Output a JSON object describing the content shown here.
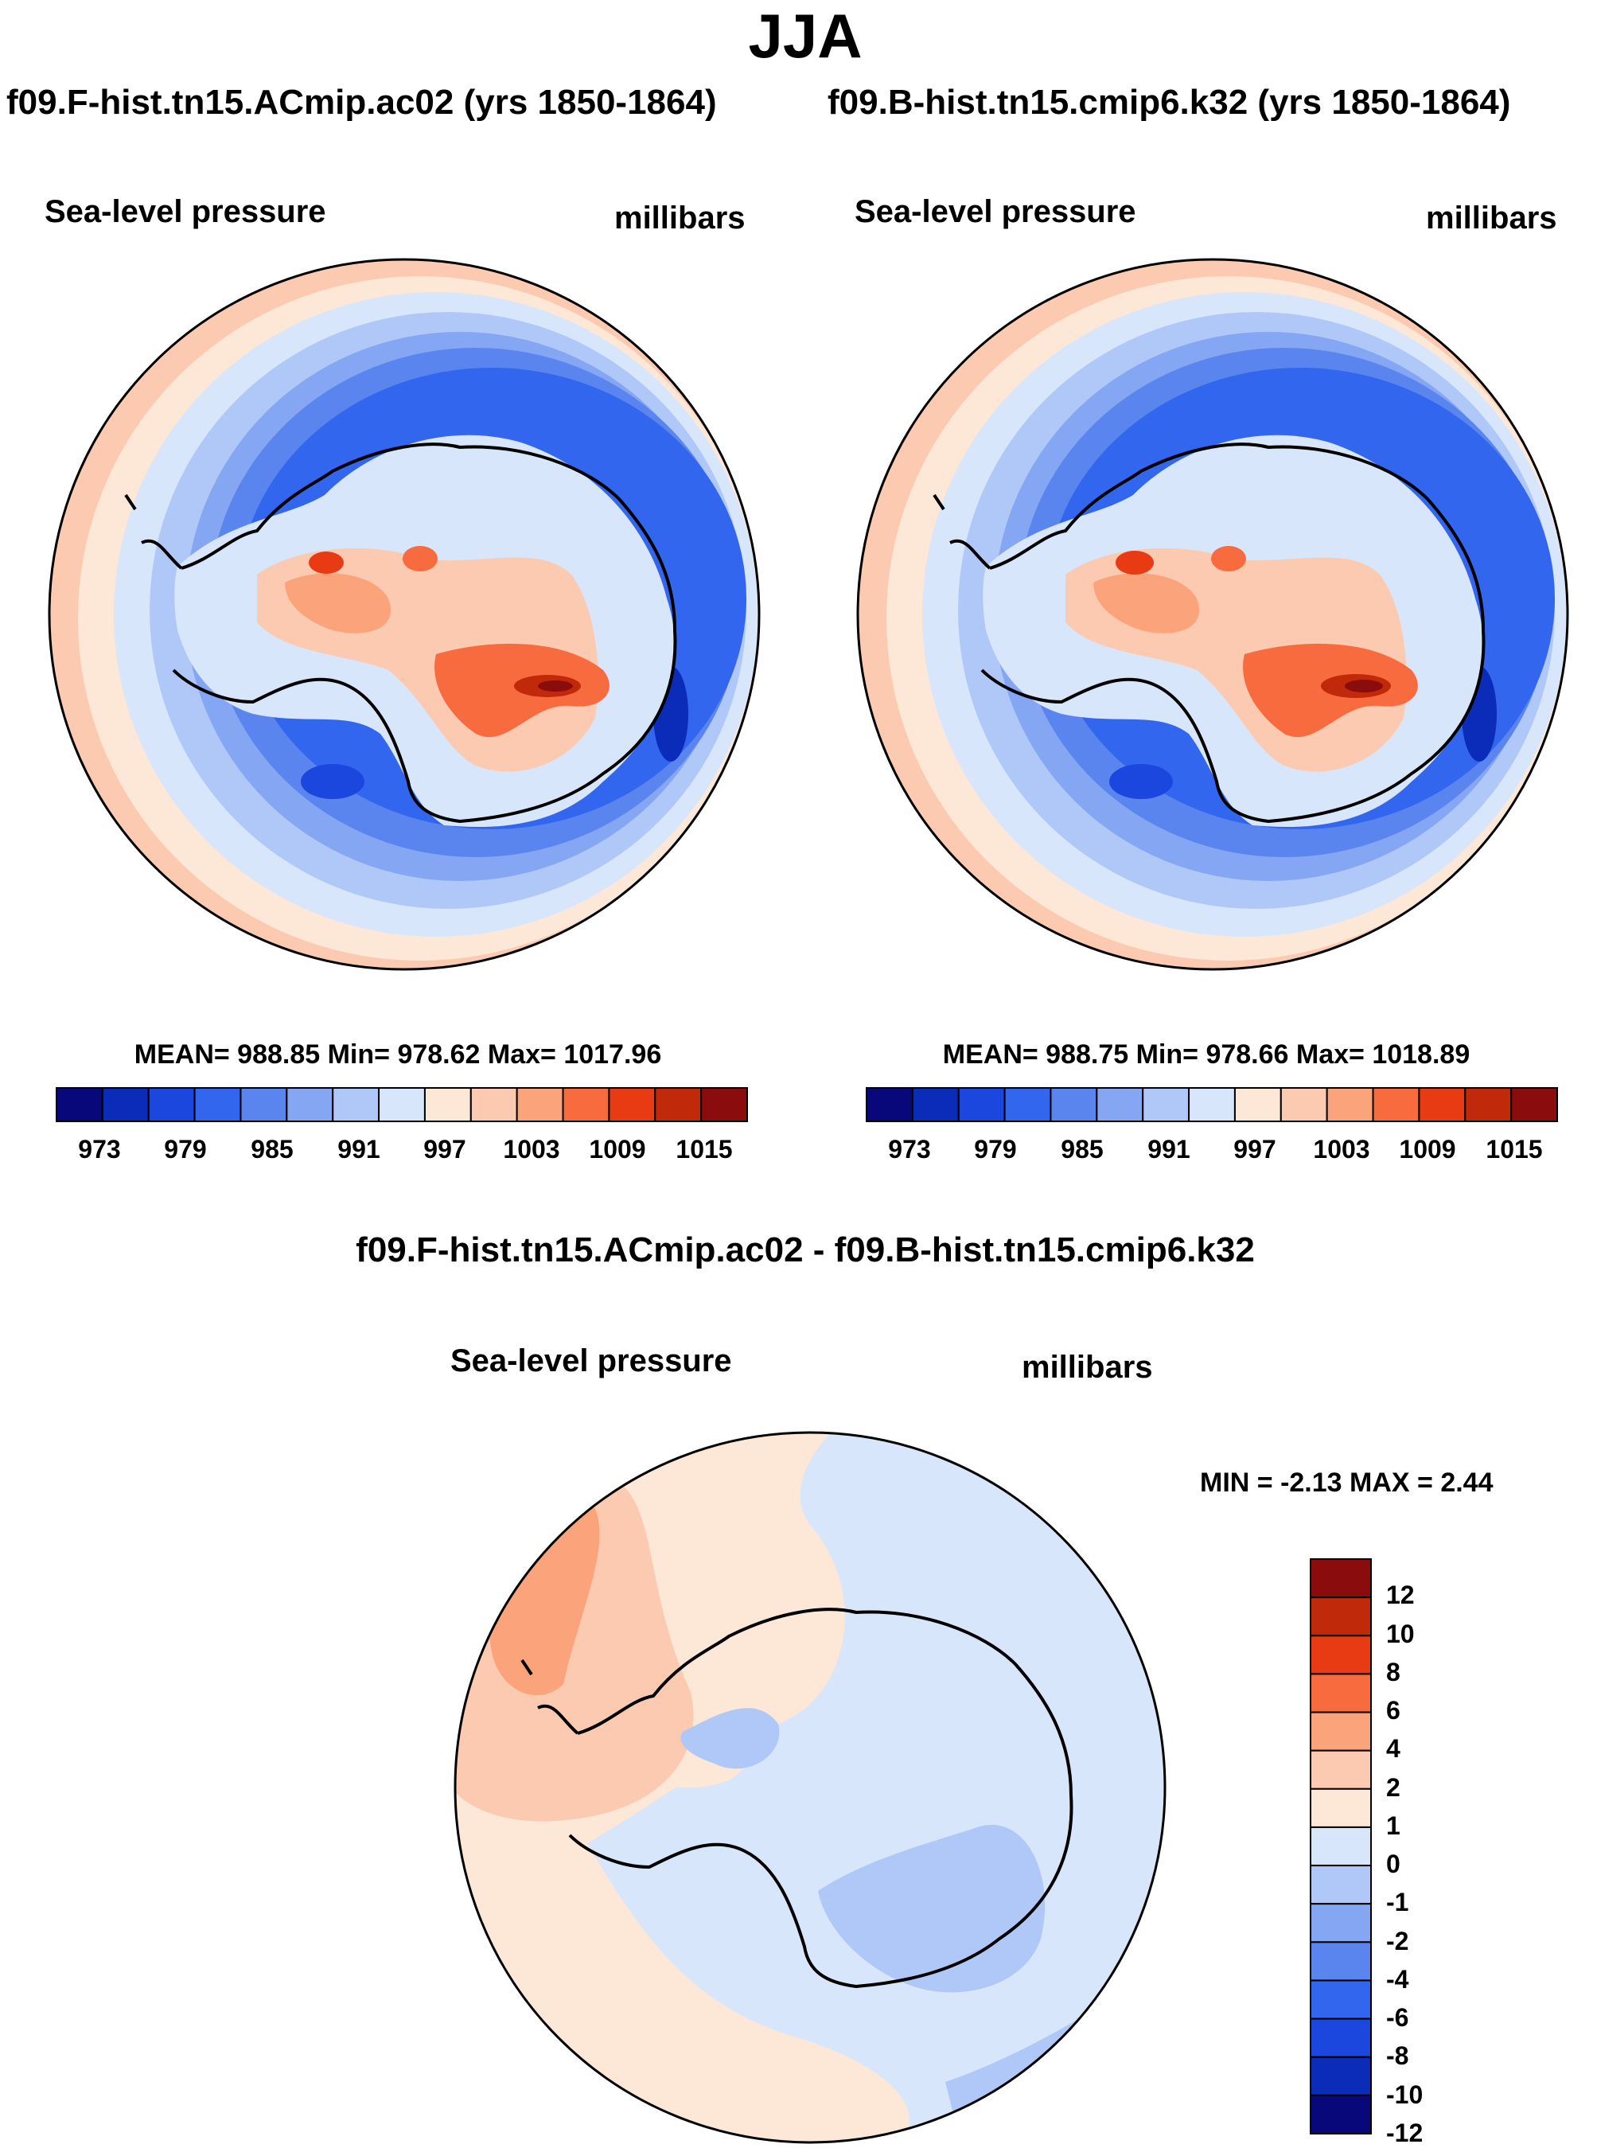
{
  "title": "JJA",
  "panels": [
    {
      "case": "f09.F-hist.tn15.ACmip.ac02 (yrs 1850-1864)",
      "variable": "Sea-level pressure",
      "units": "millibars",
      "stats": "MEAN= 988.85  Min= 978.62  Max= 1017.96",
      "legend_ticks": [
        "973",
        "979",
        "985",
        "991",
        "997",
        "1003",
        "1009",
        "1015"
      ]
    },
    {
      "case": "f09.B-hist.tn15.cmip6.k32 (yrs 1850-1864)",
      "variable": "Sea-level pressure",
      "units": "millibars",
      "stats": "MEAN= 988.75  Min= 978.66  Max= 1018.89",
      "legend_ticks": [
        "973",
        "979",
        "985",
        "991",
        "997",
        "1003",
        "1009",
        "1015"
      ]
    }
  ],
  "diff": {
    "title": "f09.F-hist.tn15.ACmip.ac02 - f09.B-hist.tn15.cmip6.k32",
    "variable": "Sea-level pressure",
    "units": "millibars",
    "minmax": "MIN =  -2.13 MAX =   2.44",
    "legend_ticks": [
      "12",
      "10",
      "8",
      "6",
      "4",
      "2",
      "1",
      "0",
      "-1",
      "-2",
      "-4",
      "-6",
      "-8",
      "-10",
      "-12"
    ]
  },
  "colors": {
    "abs_scale": [
      "#08087a",
      "#0b2cb8",
      "#1c47de",
      "#3366ee",
      "#5a85ee",
      "#85a6f2",
      "#b0c8f7",
      "#d8e6fb",
      "#fde7d7",
      "#fccab0",
      "#fba47c",
      "#f76b3e",
      "#e83b14",
      "#c02a0a",
      "#8a0c0c"
    ],
    "diff_scale": [
      "#8a0c0c",
      "#c02a0a",
      "#e83b14",
      "#f76b3e",
      "#fba47c",
      "#fccab0",
      "#fde7d7",
      "#d8e6fb",
      "#b0c8f7",
      "#85a6f2",
      "#5a85ee",
      "#3366ee",
      "#1c47de",
      "#0b2cb8",
      "#08087a"
    ]
  }
}
